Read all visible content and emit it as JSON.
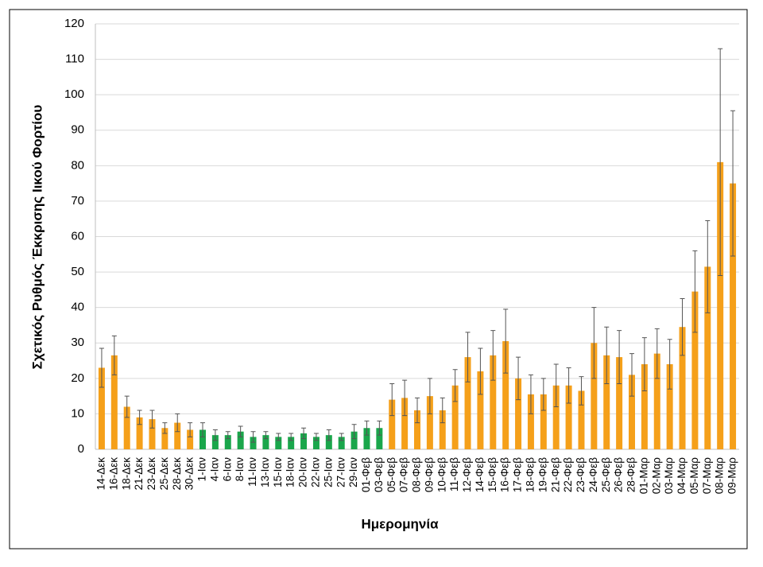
{
  "chart_data": {
    "type": "bar",
    "y_label": "Σχετικός Ρυθμός Έκκρισης Ιικού Φορτίου",
    "x_label": "Ημερομηνία",
    "categories": [
      "14-Δεκ",
      "16-Δεκ",
      "18-Δεκ",
      "21-Δεκ",
      "23-Δεκ",
      "25-Δεκ",
      "28-Δεκ",
      "30-Δεκ",
      "1-Ιαν",
      "4-Ιαν",
      "6-Ιαν",
      "8-Ιαν",
      "11-Ιαν",
      "13-Ιαν",
      "15-Ιαν",
      "18-Ιαν",
      "20-Ιαν",
      "22-Ιαν",
      "25-Ιαν",
      "27-Ιαν",
      "29-Ιαν",
      "01-Φεβ",
      "03-Φεβ",
      "05-Φεβ",
      "07-Φεβ",
      "08-Φεβ",
      "09-Φεβ",
      "10-Φεβ",
      "11-Φεβ",
      "12-Φεβ",
      "14-Φεβ",
      "15-Φεβ",
      "16-Φεβ",
      "17-Φεβ",
      "18-Φεβ",
      "19-Φεβ",
      "21-Φεβ",
      "22-Φεβ",
      "23-Φεβ",
      "24-Φεβ",
      "25-Φεβ",
      "26-Φεβ",
      "28-Φεβ",
      "01-Μαρ",
      "02-Μαρ",
      "03-Μαρ",
      "04-Μαρ",
      "05-Μαρ",
      "07-Μαρ",
      "08-Μαρ",
      "09-Μαρ"
    ],
    "values": [
      23,
      26.5,
      12,
      9,
      8.5,
      6,
      7.5,
      5.5,
      5.5,
      4,
      4,
      5,
      3.5,
      4,
      3.5,
      3.5,
      4.5,
      3.5,
      4,
      3.5,
      5,
      6,
      6,
      14,
      14.5,
      11,
      15,
      11,
      18,
      26,
      22,
      26.5,
      30.5,
      20,
      15.5,
      15.5,
      18,
      18,
      16.5,
      30,
      26.5,
      26,
      21,
      24,
      27,
      24,
      34.5,
      44.5,
      51.5,
      81,
      75
    ],
    "errors": [
      5.5,
      5.5,
      3,
      2,
      2.5,
      1.5,
      2.5,
      2,
      2,
      1.5,
      1,
      1.5,
      1.5,
      1,
      1,
      1,
      1.5,
      1,
      1.5,
      1,
      2,
      2,
      2,
      4.5,
      5,
      3.5,
      5,
      3.5,
      4.5,
      7,
      6.5,
      7,
      9,
      6,
      5.5,
      4.5,
      6,
      5,
      4,
      10,
      8,
      7.5,
      6,
      7.5,
      7,
      7,
      8,
      11.5,
      13,
      32,
      20.5
    ],
    "colors": [
      "#f5a01a",
      "#f5a01a",
      "#f5a01a",
      "#f5a01a",
      "#f5a01a",
      "#f5a01a",
      "#f5a01a",
      "#f5a01a",
      "#1aa64b",
      "#1aa64b",
      "#1aa64b",
      "#1aa64b",
      "#1aa64b",
      "#1aa64b",
      "#1aa64b",
      "#1aa64b",
      "#1aa64b",
      "#1aa64b",
      "#1aa64b",
      "#1aa64b",
      "#1aa64b",
      "#1aa64b",
      "#1aa64b",
      "#f5a01a",
      "#f5a01a",
      "#f5a01a",
      "#f5a01a",
      "#f5a01a",
      "#f5a01a",
      "#f5a01a",
      "#f5a01a",
      "#f5a01a",
      "#f5a01a",
      "#f5a01a",
      "#f5a01a",
      "#f5a01a",
      "#f5a01a",
      "#f5a01a",
      "#f5a01a",
      "#f5a01a",
      "#f5a01a",
      "#f5a01a",
      "#f5a01a",
      "#f5a01a",
      "#f5a01a",
      "#f5a01a",
      "#f5a01a",
      "#f5a01a",
      "#f5a01a",
      "#f5a01a",
      "#f5a01a"
    ],
    "ylim": [
      0,
      120
    ],
    "yticks": [
      0,
      10,
      20,
      30,
      40,
      50,
      60,
      70,
      80,
      90,
      100,
      110,
      120
    ],
    "grid": true
  }
}
